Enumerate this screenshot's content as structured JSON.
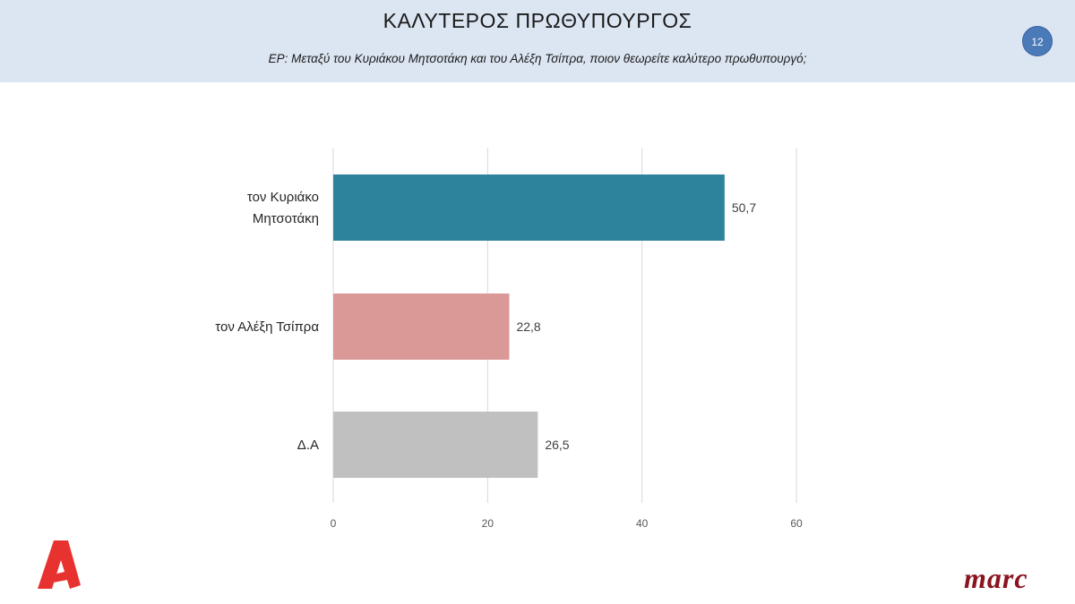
{
  "header": {
    "title": "ΚΑΛΥΤΕΡΟΣ ΠΡΩΘΥΠΟΥΡΓΟΣ",
    "subtitle": "ΕΡ:  Μεταξύ του Κυριάκου Μητσοτάκη και του Αλέξη Τσίπρα, ποιον θεωρείτε καλύτερο πρωθυπουργό;",
    "page_number": "12"
  },
  "logos": {
    "left": "alpha-logo",
    "right_text": "marc"
  },
  "chart_data": {
    "type": "bar",
    "orientation": "horizontal",
    "categories": [
      [
        "τον Κυριάκο",
        "Μητσοτάκη"
      ],
      [
        "τον Αλέξη Τσίπρα"
      ],
      [
        "Δ.Α"
      ]
    ],
    "values": [
      50.7,
      22.8,
      26.5
    ],
    "value_labels": [
      "50,7",
      "22,8",
      "26,5"
    ],
    "colors": [
      "#2e839c",
      "#da9896",
      "#c0c0c0"
    ],
    "xlim": [
      0,
      60
    ],
    "ticks": [
      0,
      20,
      40,
      60
    ],
    "tick_labels": [
      "0",
      "20",
      "40",
      "60"
    ],
    "grid": true,
    "legend": "none"
  }
}
